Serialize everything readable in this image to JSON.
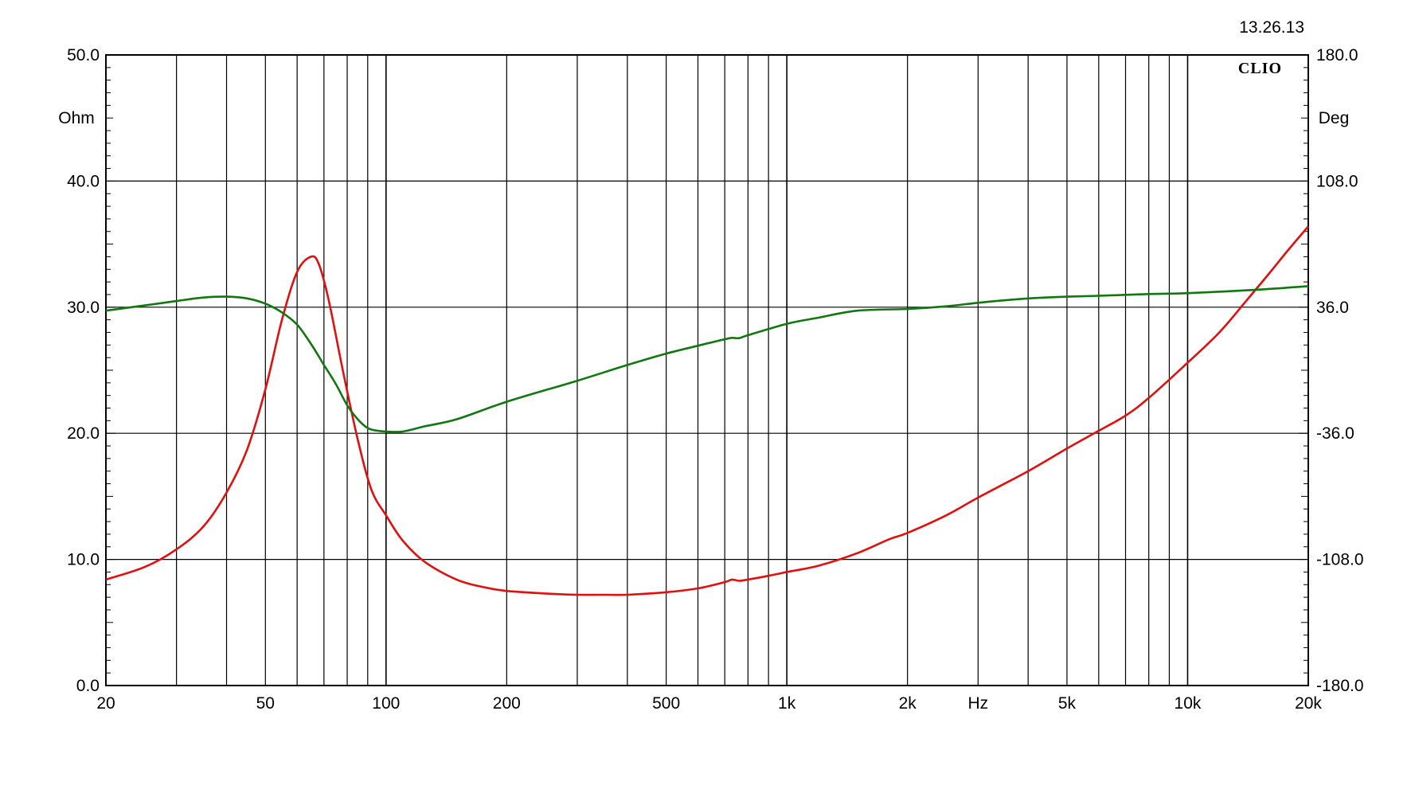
{
  "timestamp": "13.26.13",
  "brand": "CLIO",
  "chart_data": {
    "type": "line",
    "title": "",
    "xlabel": "Hz",
    "x_scale": "log",
    "xlim": [
      20,
      20000
    ],
    "x_tick_values": [
      20,
      50,
      100,
      200,
      500,
      1000,
      2000,
      5000,
      10000,
      20000
    ],
    "x_tick_labels": [
      "20",
      "50",
      "100",
      "200",
      "500",
      "1k",
      "2k",
      "5k",
      "10k",
      "20k"
    ],
    "ylabel_left": "Ohm",
    "ylim_left": [
      0,
      50
    ],
    "y_left_tick_values": [
      0,
      10,
      20,
      30,
      40,
      50
    ],
    "y_left_tick_labels": [
      "0.0",
      "10.0",
      "20.0",
      "30.0",
      "40.0",
      "50.0"
    ],
    "ylabel_right": "Deg",
    "ylim_right": [
      -180,
      180
    ],
    "y_right_tick_values": [
      -180,
      -108,
      -36,
      36,
      108,
      180
    ],
    "y_right_tick_labels": [
      "-180.0",
      "-108.0",
      "-36.0",
      "36.0",
      "108.0",
      "180.0"
    ],
    "grid": true,
    "series": [
      {
        "axis": "left",
        "color": "#e01010",
        "x": [
          20,
          25,
          30,
          35,
          40,
          45,
          50,
          55,
          60,
          65,
          68,
          72,
          78,
          85,
          92,
          100,
          110,
          125,
          150,
          175,
          200,
          250,
          300,
          350,
          400,
          500,
          600,
          700,
          730,
          760,
          800,
          900,
          1000,
          1200,
          1500,
          1800,
          2000,
          2500,
          3000,
          4000,
          5000,
          6000,
          7000,
          8000,
          10000,
          12000,
          14000,
          16000,
          18000,
          20000
        ],
        "y": [
          8.4,
          9.4,
          10.8,
          12.6,
          15.3,
          18.7,
          23.5,
          29.0,
          32.8,
          34.0,
          33.4,
          30.5,
          25.0,
          19.5,
          15.5,
          13.5,
          11.5,
          9.8,
          8.4,
          7.8,
          7.5,
          7.3,
          7.2,
          7.2,
          7.2,
          7.4,
          7.7,
          8.2,
          8.4,
          8.3,
          8.4,
          8.7,
          9.0,
          9.5,
          10.5,
          11.6,
          12.1,
          13.5,
          14.9,
          17.0,
          18.8,
          20.2,
          21.4,
          22.8,
          25.6,
          28.0,
          30.5,
          32.7,
          34.7,
          36.4
        ]
      },
      {
        "axis": "right",
        "color": "#117711",
        "x": [
          20,
          25,
          30,
          35,
          40,
          45,
          50,
          55,
          60,
          65,
          70,
          75,
          80,
          85,
          90,
          95,
          100,
          110,
          125,
          150,
          200,
          300,
          400,
          500,
          600,
          700,
          730,
          760,
          800,
          1000,
          1200,
          1500,
          2000,
          2500,
          3000,
          4000,
          5000,
          6000,
          8000,
          10000,
          15000,
          20000
        ],
        "y": [
          34,
          37,
          39.5,
          41.5,
          42,
          41,
          38,
          33,
          26,
          15,
          3,
          -8,
          -20,
          -28,
          -33,
          -34.5,
          -35,
          -35,
          -32,
          -28,
          -18,
          -6,
          3,
          9.5,
          14,
          17.7,
          18.5,
          18.3,
          20,
          26.5,
          30,
          34,
          35,
          36.5,
          38.5,
          41,
          42,
          42.5,
          43.5,
          44,
          46,
          48
        ]
      }
    ]
  }
}
